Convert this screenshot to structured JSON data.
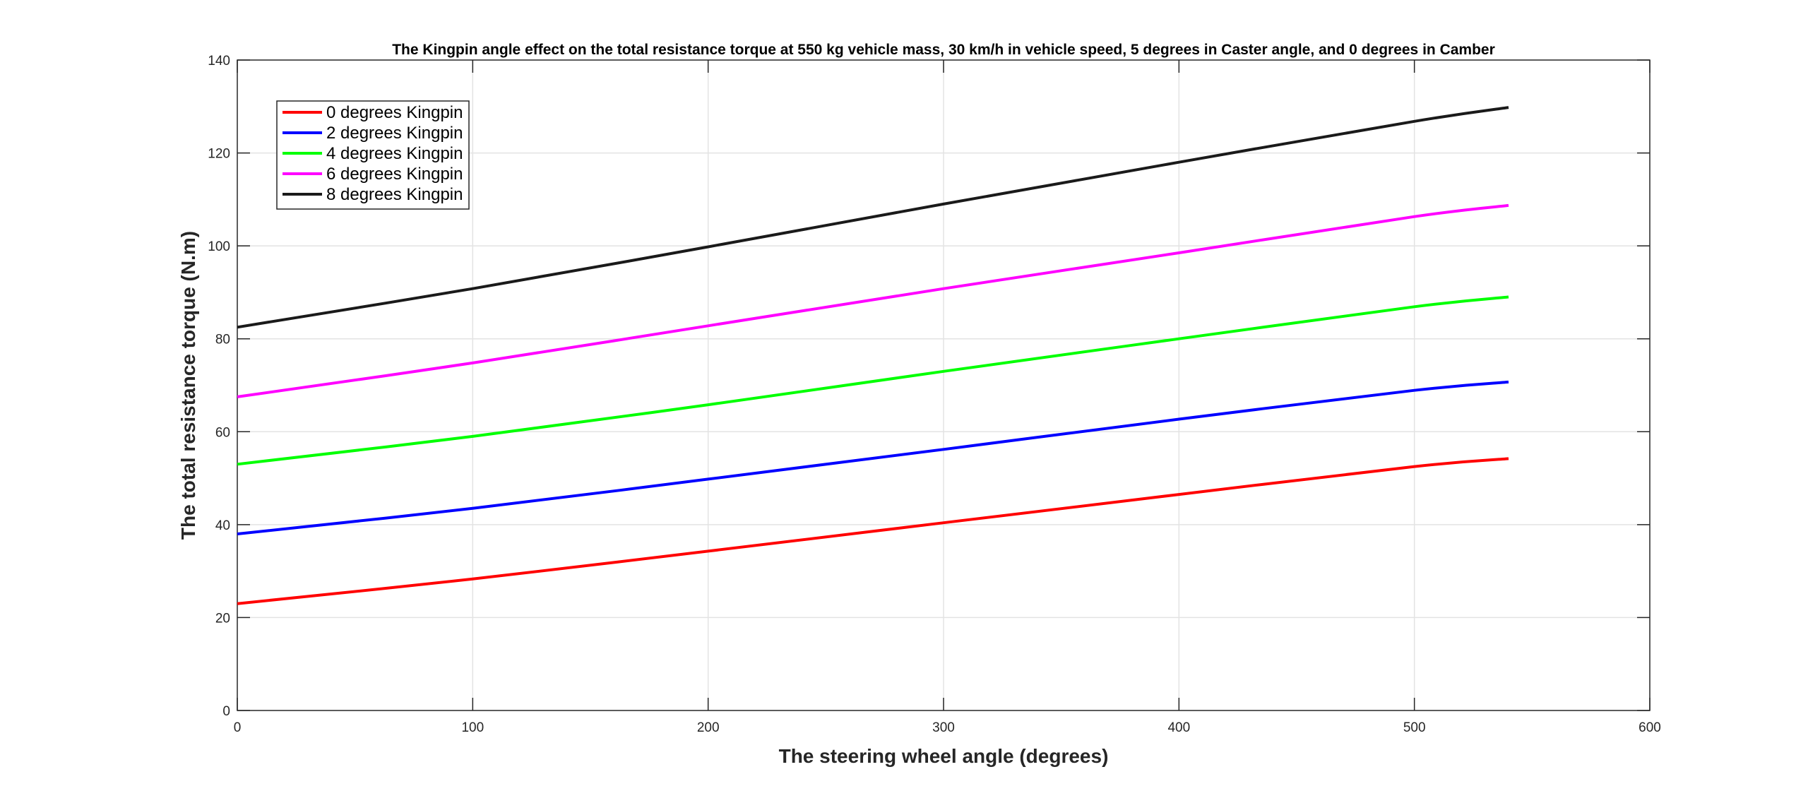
{
  "chart_data": {
    "type": "line",
    "title": "The Kingpin angle effect on the total resistance torque at 550 kg vehicle mass, 30 km/h in vehicle speed, 5 degrees in Caster angle, and 0 degrees in Camber",
    "xlabel": "The steering wheel angle (degrees)",
    "ylabel": "The total resistance torque (N.m)",
    "xlim": [
      0,
      600
    ],
    "ylim": [
      0,
      140
    ],
    "xticks": [
      0,
      100,
      200,
      300,
      400,
      500,
      600
    ],
    "yticks": [
      0,
      20,
      40,
      60,
      80,
      100,
      120,
      140
    ],
    "xtick_labels": [
      "0",
      "100",
      "200",
      "300",
      "400",
      "500",
      "600"
    ],
    "ytick_labels": [
      "0",
      "20",
      "40",
      "60",
      "80",
      "100",
      "120",
      "140"
    ],
    "grid": true,
    "legend_position": "top-left",
    "x": [
      0,
      100,
      200,
      300,
      400,
      500,
      540
    ],
    "series": [
      {
        "name": "0 degrees Kingpin",
        "color": "#ff0000",
        "values": [
          23.0,
          28.3,
          34.3,
          40.4,
          46.5,
          52.5,
          54.2
        ]
      },
      {
        "name": "2 degrees Kingpin",
        "color": "#0000ff",
        "values": [
          38.0,
          43.5,
          49.8,
          56.2,
          62.7,
          68.9,
          70.7
        ]
      },
      {
        "name": "4 degrees Kingpin",
        "color": "#00ff00",
        "values": [
          53.0,
          59.0,
          65.8,
          73.0,
          80.0,
          86.9,
          89.0
        ]
      },
      {
        "name": "6 degrees Kingpin",
        "color": "#ff00ff",
        "values": [
          67.5,
          74.8,
          82.8,
          90.8,
          98.5,
          106.3,
          108.7
        ]
      },
      {
        "name": "8 degrees Kingpin",
        "color": "#1a1a1a",
        "values": [
          82.5,
          90.8,
          99.8,
          109.0,
          118.0,
          126.8,
          129.8
        ]
      }
    ]
  }
}
